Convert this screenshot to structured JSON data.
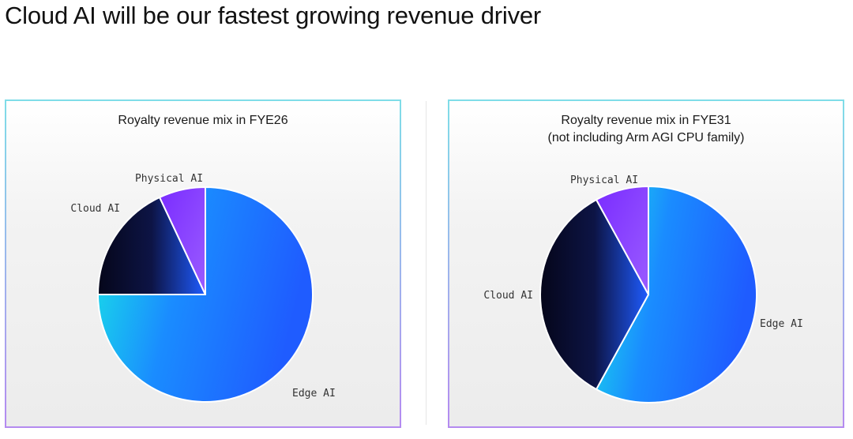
{
  "headline": "Cloud AI will be our fastest growing revenue driver",
  "colors": {
    "edge_ai": [
      "#18e6e6",
      "#1a8cff",
      "#1f5cff"
    ],
    "cloud_ai": [
      "#05061a",
      "#0d1445",
      "#1f5cff"
    ],
    "physical_ai": [
      "#7a2cff",
      "#9a5cff"
    ]
  },
  "chart_data": [
    {
      "type": "pie",
      "title": "Royalty revenue mix in FYE26",
      "subtitle": "",
      "labels": [
        "Edge AI",
        "Cloud AI",
        "Physical AI"
      ],
      "values": [
        75,
        18,
        7
      ],
      "start_angle": 0,
      "direction": "clockwise"
    },
    {
      "type": "pie",
      "title": "Royalty revenue mix in FYE31",
      "subtitle": "(not including Arm AGI CPU family)",
      "labels": [
        "Edge AI",
        "Cloud AI",
        "Physical AI"
      ],
      "values": [
        58,
        34,
        8
      ],
      "start_angle": 0,
      "direction": "clockwise"
    }
  ]
}
